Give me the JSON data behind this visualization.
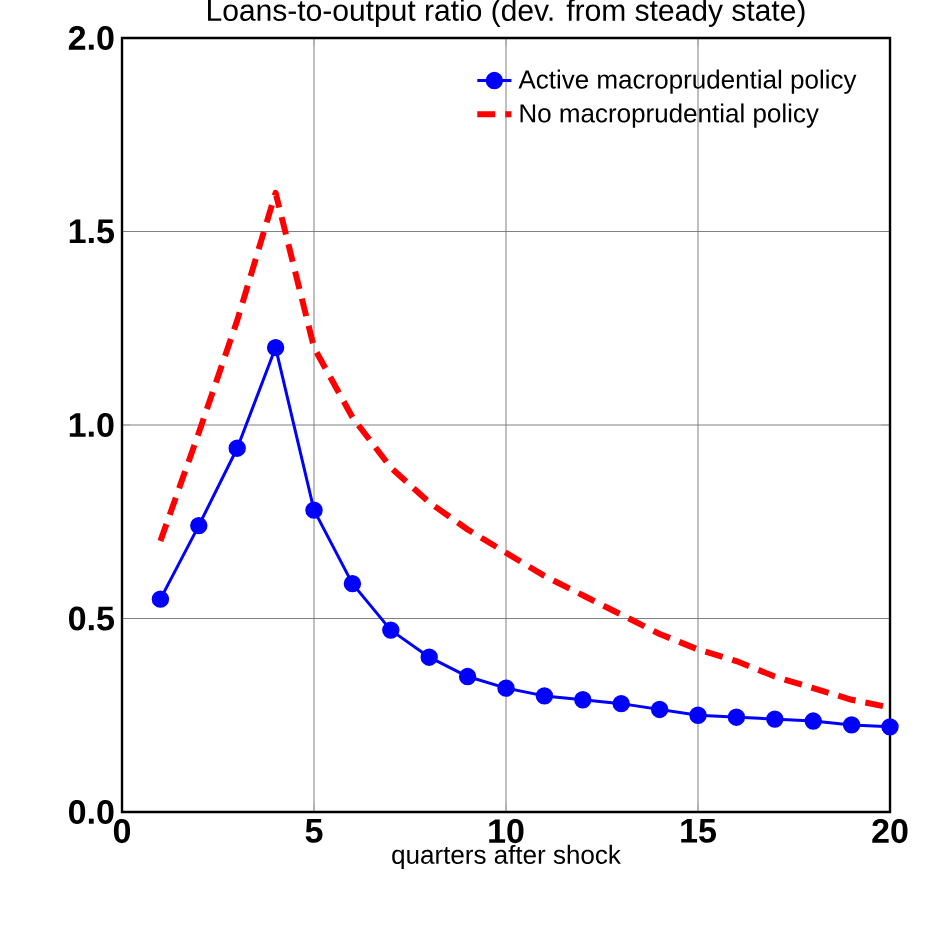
{
  "chart_data": {
    "type": "line",
    "title": "Loans-to-output ratio (dev. from steady state)",
    "xlabel": "quarters after shock",
    "x": [
      1,
      2,
      3,
      4,
      5,
      6,
      7,
      8,
      9,
      10,
      11,
      12,
      13,
      14,
      15,
      16,
      17,
      18,
      19,
      20
    ],
    "series": [
      {
        "name": "Active macroprudential policy",
        "color": "#0000ff",
        "marker": "circle",
        "line_style": "solid",
        "values": [
          0.55,
          0.74,
          0.94,
          1.2,
          0.78,
          0.59,
          0.47,
          0.4,
          0.35,
          0.32,
          0.3,
          0.29,
          0.28,
          0.265,
          0.25,
          0.245,
          0.24,
          0.235,
          0.225,
          0.22
        ]
      },
      {
        "name": "No macroprudential policy",
        "color": "#ff0000",
        "marker": "none",
        "line_style": "dashed",
        "values": [
          0.7,
          0.98,
          1.27,
          1.6,
          1.2,
          1.02,
          0.89,
          0.8,
          0.73,
          0.67,
          0.61,
          0.56,
          0.51,
          0.46,
          0.42,
          0.39,
          0.35,
          0.32,
          0.29,
          0.27
        ]
      }
    ],
    "xlim": [
      0,
      20
    ],
    "xticks": [
      0,
      5,
      10,
      15,
      20
    ],
    "ylim": [
      0,
      2
    ],
    "yticks": [
      {
        "value": 0,
        "label": "0.0"
      },
      0.5,
      {
        "value": 1,
        "label": "1.0"
      },
      1.5,
      {
        "value": 2,
        "label": "2.0"
      }
    ],
    "grid": true,
    "legend": "top right"
  }
}
